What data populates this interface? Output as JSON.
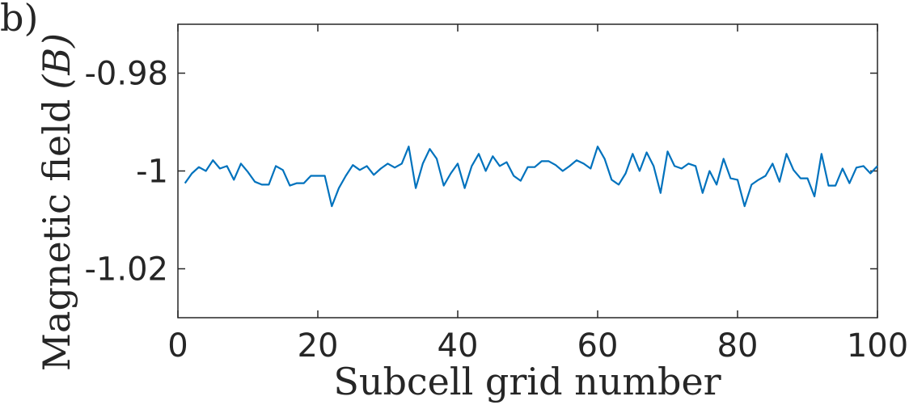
{
  "panel_label": "b)",
  "chart_data": {
    "type": "line",
    "xlabel": "Subcell grid number",
    "ylabel": "Magnetic field",
    "ylabel_symbol": "(B)",
    "xlim": [
      0,
      100
    ],
    "ylim": [
      -1.03,
      -0.97
    ],
    "xticks": [
      0,
      20,
      40,
      60,
      80,
      100
    ],
    "xtick_labels": [
      "0",
      "20",
      "40",
      "60",
      "80",
      "100"
    ],
    "yticks": [
      -0.98,
      -1.0,
      -1.02
    ],
    "ytick_labels": [
      "-0.98",
      "-1",
      "-1.02"
    ],
    "grid": false,
    "line_color": "#0072BD",
    "series": [
      {
        "x": [
          1,
          2,
          3,
          4,
          5,
          6,
          7,
          8,
          9,
          10,
          11,
          12,
          13,
          14,
          15,
          16,
          17,
          18,
          19,
          20,
          21,
          22,
          23,
          24,
          25,
          26,
          27,
          28,
          29,
          30,
          31,
          32,
          33,
          34,
          35,
          36,
          37,
          38,
          39,
          40,
          41,
          42,
          43,
          44,
          45,
          46,
          47,
          48,
          49,
          50,
          51,
          52,
          53,
          54,
          55,
          56,
          57,
          58,
          59,
          60,
          61,
          62,
          63,
          64,
          65,
          66,
          67,
          68,
          69,
          70,
          71,
          72,
          73,
          74,
          75,
          76,
          77,
          78,
          79,
          80,
          81,
          82,
          83,
          84,
          85,
          86,
          87,
          88,
          89,
          90,
          91,
          92,
          93,
          94,
          95,
          96,
          97,
          98,
          99,
          100
        ],
        "values": [
          -1.0025,
          -1.0005,
          -0.9992,
          -1.0,
          -0.9978,
          -0.9995,
          -0.999,
          -1.0018,
          -0.9985,
          -1.0002,
          -1.0022,
          -1.0028,
          -1.0028,
          -0.999,
          -0.9998,
          -1.003,
          -1.0025,
          -1.0025,
          -1.001,
          -1.001,
          -1.001,
          -1.0072,
          -1.0035,
          -1.001,
          -0.9988,
          -0.9998,
          -0.999,
          -1.0008,
          -0.9995,
          -0.9985,
          -0.9993,
          -0.9985,
          -0.995,
          -1.0035,
          -0.9985,
          -0.9955,
          -0.9975,
          -1.003,
          -1.0005,
          -0.9985,
          -1.0035,
          -0.999,
          -0.9965,
          -1.0,
          -0.997,
          -0.999,
          -0.9982,
          -1.001,
          -1.002,
          -0.9992,
          -0.9992,
          -0.998,
          -0.998,
          -0.9988,
          -1.0,
          -0.999,
          -0.9978,
          -0.9985,
          -0.9995,
          -0.995,
          -0.9975,
          -1.0018,
          -1.0028,
          -1.0005,
          -0.9965,
          -1.0,
          -0.9962,
          -0.999,
          -1.0045,
          -0.996,
          -0.999,
          -0.9995,
          -0.9985,
          -0.999,
          -1.0045,
          -1.0,
          -1.0028,
          -0.9975,
          -1.0015,
          -1.0018,
          -1.0072,
          -1.0028,
          -1.0018,
          -1.001,
          -0.9985,
          -1.0022,
          -0.9965,
          -0.9998,
          -1.0015,
          -1.0015,
          -1.0052,
          -0.9965,
          -1.003,
          -1.003,
          -0.9995,
          -1.0025,
          -0.9993,
          -0.999,
          -1.0005,
          -0.999
        ]
      }
    ]
  }
}
